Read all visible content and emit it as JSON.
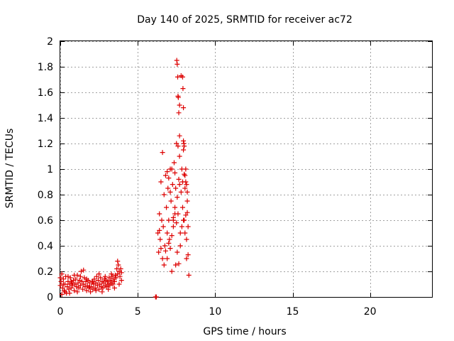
{
  "chart_data": {
    "type": "scatter",
    "title": "Day 140 of 2025, SRMTID for receiver ac72",
    "xlabel": "GPS time / hours",
    "ylabel": "SRMTID / TECUs",
    "xlim": [
      0,
      24
    ],
    "ylim": [
      0,
      2
    ],
    "x_ticks": [
      0,
      5,
      10,
      15,
      20
    ],
    "x_tick_labels": [
      "0",
      "5",
      "10",
      "15",
      "20"
    ],
    "y_ticks": [
      0,
      0.2,
      0.4,
      0.6,
      0.8,
      1,
      1.2,
      1.4,
      1.6,
      1.8,
      2
    ],
    "y_tick_labels": [
      "0",
      "0.2",
      "0.4",
      "0.6",
      "0.8",
      "1",
      "1.2",
      "1.4",
      "1.6",
      "1.8",
      "2"
    ],
    "grid": true,
    "marker": "+",
    "marker_color": "#dd0000",
    "series": [
      {
        "name": "SRMTID",
        "points": [
          [
            0.0,
            0.09
          ],
          [
            0.05,
            0.12
          ],
          [
            0.1,
            0.18
          ],
          [
            0.15,
            0.07
          ],
          [
            0.2,
            0.14
          ],
          [
            0.25,
            0.05
          ],
          [
            0.3,
            0.1
          ],
          [
            0.35,
            0.16
          ],
          [
            0.4,
            0.03
          ],
          [
            0.45,
            0.08
          ],
          [
            0.5,
            0.12
          ],
          [
            0.55,
            0.06
          ],
          [
            0.6,
            0.1
          ],
          [
            0.65,
            0.15
          ],
          [
            0.7,
            0.07
          ],
          [
            0.75,
            0.11
          ],
          [
            0.8,
            0.09
          ],
          [
            0.85,
            0.13
          ],
          [
            0.9,
            0.05
          ],
          [
            0.95,
            0.1
          ],
          [
            1.0,
            0.14
          ],
          [
            1.05,
            0.08
          ],
          [
            1.1,
            0.17
          ],
          [
            1.15,
            0.11
          ],
          [
            1.2,
            0.07
          ],
          [
            1.25,
            0.13
          ],
          [
            1.3,
            0.09
          ],
          [
            1.35,
            0.2
          ],
          [
            1.4,
            0.12
          ],
          [
            1.45,
            0.06
          ],
          [
            1.5,
            0.1
          ],
          [
            1.55,
            0.15
          ],
          [
            1.6,
            0.08
          ],
          [
            1.65,
            0.12
          ],
          [
            1.7,
            0.05
          ],
          [
            1.75,
            0.09
          ],
          [
            1.8,
            0.13
          ],
          [
            1.85,
            0.07
          ],
          [
            1.9,
            0.11
          ],
          [
            1.95,
            0.04
          ],
          [
            2.0,
            0.08
          ],
          [
            2.05,
            0.12
          ],
          [
            2.1,
            0.06
          ],
          [
            2.15,
            0.1
          ],
          [
            2.2,
            0.14
          ],
          [
            2.25,
            0.07
          ],
          [
            2.3,
            0.11
          ],
          [
            2.35,
            0.16
          ],
          [
            2.4,
            0.09
          ],
          [
            2.45,
            0.13
          ],
          [
            2.5,
            0.06
          ],
          [
            2.55,
            0.1
          ],
          [
            2.6,
            0.15
          ],
          [
            2.65,
            0.08
          ],
          [
            2.7,
            0.12
          ],
          [
            2.75,
            0.07
          ],
          [
            2.8,
            0.11
          ],
          [
            2.85,
            0.14
          ],
          [
            2.9,
            0.09
          ],
          [
            2.95,
            0.13
          ],
          [
            3.0,
            0.08
          ],
          [
            3.05,
            0.12
          ],
          [
            3.1,
            0.1
          ],
          [
            3.15,
            0.15
          ],
          [
            3.2,
            0.09
          ],
          [
            3.25,
            0.13
          ],
          [
            3.3,
            0.11
          ],
          [
            3.35,
            0.16
          ],
          [
            3.4,
            0.1
          ],
          [
            3.45,
            0.14
          ],
          [
            3.5,
            0.12
          ],
          [
            3.55,
            0.17
          ],
          [
            3.6,
            0.15
          ],
          [
            3.65,
            0.22
          ],
          [
            3.7,
            0.18
          ],
          [
            3.75,
            0.25
          ],
          [
            3.8,
            0.2
          ],
          [
            3.85,
            0.16
          ],
          [
            3.9,
            0.22
          ],
          [
            3.95,
            0.19
          ],
          [
            0.1,
            0.02
          ],
          [
            0.2,
            0.1
          ],
          [
            0.3,
            0.04
          ],
          [
            0.5,
            0.16
          ],
          [
            0.7,
            0.12
          ],
          [
            0.9,
            0.17
          ],
          [
            1.1,
            0.04
          ],
          [
            1.3,
            0.16
          ],
          [
            1.5,
            0.21
          ],
          [
            1.7,
            0.14
          ],
          [
            1.9,
            0.08
          ],
          [
            2.1,
            0.12
          ],
          [
            2.3,
            0.05
          ],
          [
            2.5,
            0.18
          ],
          [
            2.7,
            0.04
          ],
          [
            2.9,
            0.16
          ],
          [
            3.1,
            0.06
          ],
          [
            3.3,
            0.18
          ],
          [
            3.5,
            0.07
          ],
          [
            3.7,
            0.28
          ],
          [
            3.8,
            0.1
          ],
          [
            3.95,
            0.13
          ],
          [
            0.0,
            0.15
          ],
          [
            0.6,
            0.03
          ],
          [
            6.15,
            0.0
          ],
          [
            6.2,
            0.0
          ],
          [
            6.3,
            0.5
          ],
          [
            6.35,
            0.35
          ],
          [
            6.4,
            0.65
          ],
          [
            6.45,
            0.45
          ],
          [
            6.5,
            0.9
          ],
          [
            6.55,
            0.6
          ],
          [
            6.6,
            1.13
          ],
          [
            6.65,
            0.55
          ],
          [
            6.7,
            0.8
          ],
          [
            6.75,
            0.4
          ],
          [
            6.8,
            0.95
          ],
          [
            6.85,
            0.7
          ],
          [
            6.9,
            0.3
          ],
          [
            6.95,
            0.85
          ],
          [
            7.0,
            0.6
          ],
          [
            7.05,
            0.45
          ],
          [
            7.1,
            1.0
          ],
          [
            7.15,
            0.75
          ],
          [
            7.2,
            0.2
          ],
          [
            7.25,
            0.88
          ],
          [
            7.3,
            0.55
          ],
          [
            7.35,
            1.05
          ],
          [
            7.4,
            0.65
          ],
          [
            7.45,
            0.25
          ],
          [
            7.5,
            1.2
          ],
          [
            7.55,
            0.78
          ],
          [
            7.6,
            1.57
          ],
          [
            7.65,
            0.92
          ],
          [
            7.7,
            1.26
          ],
          [
            7.75,
            0.5
          ],
          [
            7.8,
            1.73
          ],
          [
            7.85,
            1.0
          ],
          [
            7.9,
            0.7
          ],
          [
            7.95,
            1.15
          ],
          [
            8.0,
            0.6
          ],
          [
            8.05,
            0.85
          ],
          [
            8.1,
            1.0
          ],
          [
            8.15,
            0.45
          ],
          [
            8.2,
            0.75
          ],
          [
            8.25,
            0.33
          ],
          [
            8.3,
            0.17
          ],
          [
            7.52,
            1.85
          ],
          [
            7.55,
            1.82
          ],
          [
            7.58,
            1.72
          ],
          [
            7.62,
            1.56
          ],
          [
            7.65,
            1.44
          ],
          [
            7.7,
            1.5
          ],
          [
            7.9,
            1.72
          ],
          [
            7.92,
            1.63
          ],
          [
            7.95,
            1.48
          ],
          [
            7.6,
            1.18
          ],
          [
            7.7,
            1.1
          ],
          [
            7.95,
            1.22
          ],
          [
            7.98,
            1.2
          ],
          [
            8.0,
            1.18
          ],
          [
            8.05,
            0.95
          ],
          [
            8.1,
            0.9
          ],
          [
            8.15,
            0.88
          ],
          [
            8.2,
            0.66
          ],
          [
            8.25,
            0.55
          ],
          [
            6.4,
            0.52
          ],
          [
            6.5,
            0.38
          ],
          [
            6.6,
            0.3
          ],
          [
            6.7,
            0.25
          ],
          [
            6.8,
            0.36
          ],
          [
            6.9,
            0.5
          ],
          [
            7.0,
            0.42
          ],
          [
            7.1,
            0.38
          ],
          [
            7.2,
            0.48
          ],
          [
            7.3,
            0.6
          ],
          [
            7.4,
            0.7
          ],
          [
            7.5,
            0.58
          ],
          [
            7.6,
            0.65
          ],
          [
            7.7,
            0.88
          ],
          [
            7.8,
            0.82
          ],
          [
            7.9,
            0.9
          ],
          [
            8.0,
            0.96
          ],
          [
            8.1,
            0.64
          ],
          [
            8.2,
            0.82
          ],
          [
            6.9,
            0.98
          ],
          [
            7.0,
            0.93
          ],
          [
            7.1,
            0.82
          ],
          [
            7.2,
            1.0
          ],
          [
            7.3,
            0.62
          ],
          [
            7.4,
            0.97
          ],
          [
            7.45,
            0.85
          ],
          [
            7.55,
            0.35
          ],
          [
            7.65,
            0.26
          ],
          [
            7.75,
            0.4
          ],
          [
            7.85,
            0.55
          ],
          [
            7.95,
            0.6
          ],
          [
            8.05,
            0.5
          ],
          [
            8.15,
            0.3
          ]
        ]
      }
    ]
  }
}
